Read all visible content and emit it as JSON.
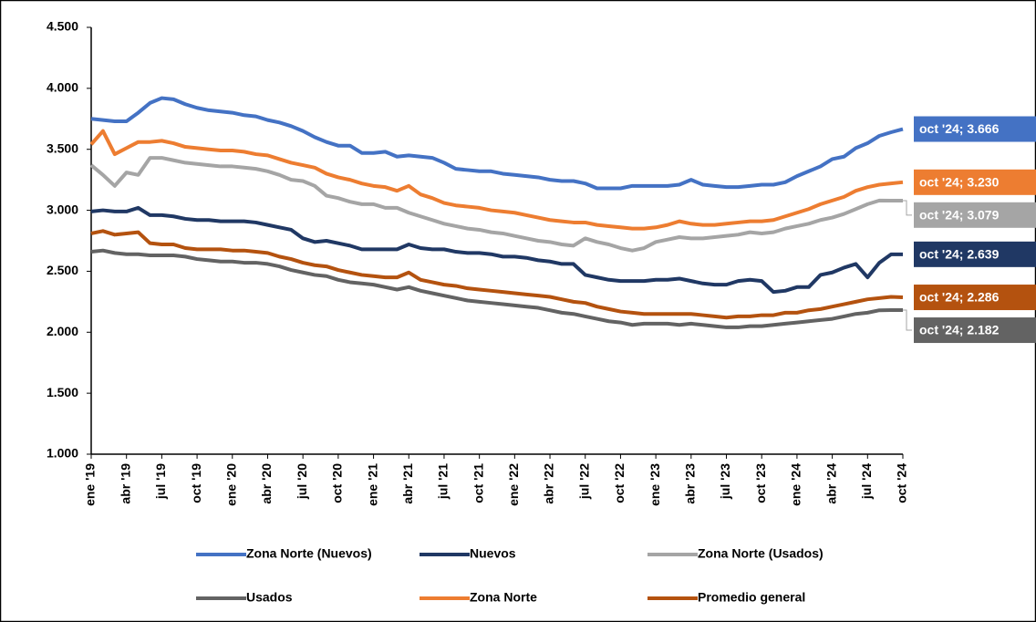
{
  "chart_data": {
    "type": "line",
    "categories": [
      "ene '19",
      null,
      null,
      "abr '19",
      null,
      null,
      "jul '19",
      null,
      null,
      "oct '19",
      null,
      null,
      "ene '20",
      null,
      null,
      "abr '20",
      null,
      null,
      "jul '20",
      null,
      null,
      "oct '20",
      null,
      null,
      "ene '21",
      null,
      null,
      "abr '21",
      null,
      null,
      "jul '21",
      null,
      null,
      "oct '21",
      null,
      null,
      "ene '22",
      null,
      null,
      "abr '22",
      null,
      null,
      "jul '22",
      null,
      null,
      "oct '22",
      null,
      null,
      "ene '23",
      null,
      null,
      "abr '23",
      null,
      null,
      "jul '23",
      null,
      null,
      "oct '23",
      null,
      null,
      "ene '24",
      null,
      null,
      "abr '24",
      null,
      null,
      "jul '24",
      null,
      null,
      "oct '24"
    ],
    "ylim": [
      1000,
      4500
    ],
    "yticks": [
      {
        "value": 1000,
        "label": "1.000"
      },
      {
        "value": 1500,
        "label": "1.500"
      },
      {
        "value": 2000,
        "label": "2.000"
      },
      {
        "value": 2500,
        "label": "2.500"
      },
      {
        "value": 3000,
        "label": "3.000"
      },
      {
        "value": 3500,
        "label": "3.500"
      },
      {
        "value": 4000,
        "label": "4.000"
      },
      {
        "value": 4500,
        "label": "4.500"
      }
    ],
    "grid": false,
    "legend": "bottom",
    "series": [
      {
        "name": "Zona Norte (Nuevos)",
        "color": "#4472c4",
        "values": [
          3750,
          3740,
          3730,
          3730,
          3800,
          3880,
          3920,
          3910,
          3870,
          3840,
          3820,
          3810,
          3800,
          3780,
          3770,
          3740,
          3720,
          3690,
          3650,
          3600,
          3560,
          3530,
          3530,
          3470,
          3470,
          3480,
          3440,
          3450,
          3440,
          3430,
          3390,
          3340,
          3330,
          3320,
          3320,
          3300,
          3290,
          3280,
          3270,
          3250,
          3240,
          3240,
          3220,
          3180,
          3180,
          3180,
          3200,
          3200,
          3200,
          3200,
          3210,
          3250,
          3210,
          3200,
          3190,
          3190,
          3200,
          3210,
          3210,
          3230,
          3280,
          3320,
          3360,
          3420,
          3440,
          3510,
          3550,
          3610,
          3640,
          3666
        ],
        "value_labels": [
          null,
          null,
          null,
          null,
          null,
          null,
          null,
          null,
          null,
          null,
          null,
          null,
          null,
          null,
          null,
          null,
          null,
          null,
          null,
          null,
          null,
          null,
          null,
          null,
          null,
          null,
          null,
          null,
          null,
          null,
          null,
          null,
          null,
          null,
          null,
          null,
          null,
          null,
          null,
          null,
          null,
          null,
          null,
          null,
          null,
          null,
          null,
          null,
          null,
          null,
          null,
          null,
          null,
          null,
          null,
          null,
          null,
          null,
          null,
          null,
          null,
          null,
          null,
          null,
          null,
          null,
          null,
          null,
          null,
          "oct '24; 3.666"
        ]
      },
      {
        "name": "Nuevos",
        "color": "#203864",
        "values": [
          2990,
          3000,
          2990,
          2990,
          3020,
          2960,
          2960,
          2950,
          2930,
          2920,
          2920,
          2910,
          2910,
          2910,
          2900,
          2880,
          2860,
          2840,
          2770,
          2740,
          2750,
          2730,
          2710,
          2680,
          2680,
          2680,
          2680,
          2720,
          2690,
          2680,
          2680,
          2660,
          2650,
          2650,
          2640,
          2620,
          2620,
          2610,
          2590,
          2580,
          2560,
          2560,
          2470,
          2450,
          2430,
          2420,
          2420,
          2420,
          2430,
          2430,
          2440,
          2420,
          2400,
          2390,
          2390,
          2420,
          2430,
          2420,
          2330,
          2340,
          2370,
          2370,
          2470,
          2490,
          2530,
          2560,
          2450,
          2570,
          2639,
          2639
        ],
        "value_labels": [
          null,
          null,
          null,
          null,
          null,
          null,
          null,
          null,
          null,
          null,
          null,
          null,
          null,
          null,
          null,
          null,
          null,
          null,
          null,
          null,
          null,
          null,
          null,
          null,
          null,
          null,
          null,
          null,
          null,
          null,
          null,
          null,
          null,
          null,
          null,
          null,
          null,
          null,
          null,
          null,
          null,
          null,
          null,
          null,
          null,
          null,
          null,
          null,
          null,
          null,
          null,
          null,
          null,
          null,
          null,
          null,
          null,
          null,
          null,
          null,
          null,
          null,
          null,
          null,
          null,
          null,
          null,
          null,
          null,
          "oct '24; 2.639"
        ]
      },
      {
        "name": "Zona Norte (Usados)",
        "color": "#a5a5a5",
        "values": [
          3370,
          3290,
          3200,
          3310,
          3290,
          3430,
          3430,
          3410,
          3390,
          3380,
          3370,
          3360,
          3360,
          3350,
          3340,
          3320,
          3290,
          3250,
          3240,
          3200,
          3120,
          3100,
          3070,
          3050,
          3050,
          3020,
          3020,
          2980,
          2950,
          2920,
          2890,
          2870,
          2850,
          2840,
          2820,
          2810,
          2790,
          2770,
          2750,
          2740,
          2720,
          2710,
          2770,
          2740,
          2720,
          2690,
          2670,
          2690,
          2740,
          2760,
          2780,
          2770,
          2770,
          2780,
          2790,
          2800,
          2820,
          2810,
          2820,
          2850,
          2870,
          2890,
          2920,
          2940,
          2970,
          3010,
          3050,
          3080,
          3079,
          3079
        ],
        "value_labels": [
          null,
          null,
          null,
          null,
          null,
          null,
          null,
          null,
          null,
          null,
          null,
          null,
          null,
          null,
          null,
          null,
          null,
          null,
          null,
          null,
          null,
          null,
          null,
          null,
          null,
          null,
          null,
          null,
          null,
          null,
          null,
          null,
          null,
          null,
          null,
          null,
          null,
          null,
          null,
          null,
          null,
          null,
          null,
          null,
          null,
          null,
          null,
          null,
          null,
          null,
          null,
          null,
          null,
          null,
          null,
          null,
          null,
          null,
          null,
          null,
          null,
          null,
          null,
          null,
          null,
          null,
          null,
          null,
          null,
          "oct '24; 3.079"
        ]
      },
      {
        "name": "Usados",
        "color": "#636363",
        "values": [
          2660,
          2670,
          2650,
          2640,
          2640,
          2630,
          2630,
          2630,
          2620,
          2600,
          2590,
          2580,
          2580,
          2570,
          2570,
          2560,
          2540,
          2510,
          2490,
          2470,
          2460,
          2430,
          2410,
          2400,
          2390,
          2370,
          2350,
          2370,
          2340,
          2320,
          2300,
          2280,
          2260,
          2250,
          2240,
          2230,
          2220,
          2210,
          2200,
          2180,
          2160,
          2150,
          2130,
          2110,
          2090,
          2080,
          2060,
          2070,
          2070,
          2070,
          2060,
          2070,
          2060,
          2050,
          2040,
          2040,
          2050,
          2050,
          2060,
          2070,
          2080,
          2090,
          2100,
          2110,
          2130,
          2150,
          2160,
          2180,
          2182,
          2182
        ],
        "value_labels": [
          null,
          null,
          null,
          null,
          null,
          null,
          null,
          null,
          null,
          null,
          null,
          null,
          null,
          null,
          null,
          null,
          null,
          null,
          null,
          null,
          null,
          null,
          null,
          null,
          null,
          null,
          null,
          null,
          null,
          null,
          null,
          null,
          null,
          null,
          null,
          null,
          null,
          null,
          null,
          null,
          null,
          null,
          null,
          null,
          null,
          null,
          null,
          null,
          null,
          null,
          null,
          null,
          null,
          null,
          null,
          null,
          null,
          null,
          null,
          null,
          null,
          null,
          null,
          null,
          null,
          null,
          null,
          null,
          null,
          "oct '24; 2.182"
        ]
      },
      {
        "name": "Zona Norte",
        "color": "#ed7d31",
        "values": [
          3540,
          3650,
          3460,
          3510,
          3560,
          3560,
          3570,
          3550,
          3520,
          3510,
          3500,
          3490,
          3490,
          3480,
          3460,
          3450,
          3420,
          3390,
          3370,
          3350,
          3300,
          3270,
          3250,
          3220,
          3200,
          3190,
          3160,
          3200,
          3130,
          3100,
          3060,
          3040,
          3030,
          3020,
          3000,
          2990,
          2980,
          2960,
          2940,
          2920,
          2910,
          2900,
          2900,
          2880,
          2870,
          2860,
          2850,
          2850,
          2860,
          2880,
          2910,
          2890,
          2880,
          2880,
          2890,
          2900,
          2910,
          2910,
          2920,
          2950,
          2980,
          3010,
          3050,
          3080,
          3110,
          3160,
          3190,
          3210,
          3220,
          3230
        ],
        "value_labels": [
          null,
          null,
          null,
          null,
          null,
          null,
          null,
          null,
          null,
          null,
          null,
          null,
          null,
          null,
          null,
          null,
          null,
          null,
          null,
          null,
          null,
          null,
          null,
          null,
          null,
          null,
          null,
          null,
          null,
          null,
          null,
          null,
          null,
          null,
          null,
          null,
          null,
          null,
          null,
          null,
          null,
          null,
          null,
          null,
          null,
          null,
          null,
          null,
          null,
          null,
          null,
          null,
          null,
          null,
          null,
          null,
          null,
          null,
          null,
          null,
          null,
          null,
          null,
          null,
          null,
          null,
          null,
          null,
          null,
          "oct '24; 3.230"
        ]
      },
      {
        "name": "Promedio general",
        "color": "#b4520f",
        "values": [
          2810,
          2830,
          2800,
          2810,
          2820,
          2730,
          2720,
          2720,
          2690,
          2680,
          2680,
          2680,
          2670,
          2670,
          2660,
          2650,
          2620,
          2600,
          2570,
          2550,
          2540,
          2510,
          2490,
          2470,
          2460,
          2450,
          2450,
          2490,
          2430,
          2410,
          2390,
          2380,
          2360,
          2350,
          2340,
          2330,
          2320,
          2310,
          2300,
          2290,
          2270,
          2250,
          2240,
          2210,
          2190,
          2170,
          2160,
          2150,
          2150,
          2150,
          2150,
          2150,
          2140,
          2130,
          2120,
          2130,
          2130,
          2140,
          2140,
          2160,
          2160,
          2180,
          2190,
          2210,
          2230,
          2250,
          2270,
          2280,
          2290,
          2286
        ],
        "value_labels": [
          null,
          null,
          null,
          null,
          null,
          null,
          null,
          null,
          null,
          null,
          null,
          null,
          null,
          null,
          null,
          null,
          null,
          null,
          null,
          null,
          null,
          null,
          null,
          null,
          null,
          null,
          null,
          null,
          null,
          null,
          null,
          null,
          null,
          null,
          null,
          null,
          null,
          null,
          null,
          null,
          null,
          null,
          null,
          null,
          null,
          null,
          null,
          null,
          null,
          null,
          null,
          null,
          null,
          null,
          null,
          null,
          null,
          null,
          null,
          null,
          null,
          null,
          null,
          null,
          null,
          null,
          null,
          null,
          null,
          "oct '24; 2.286"
        ]
      }
    ]
  }
}
